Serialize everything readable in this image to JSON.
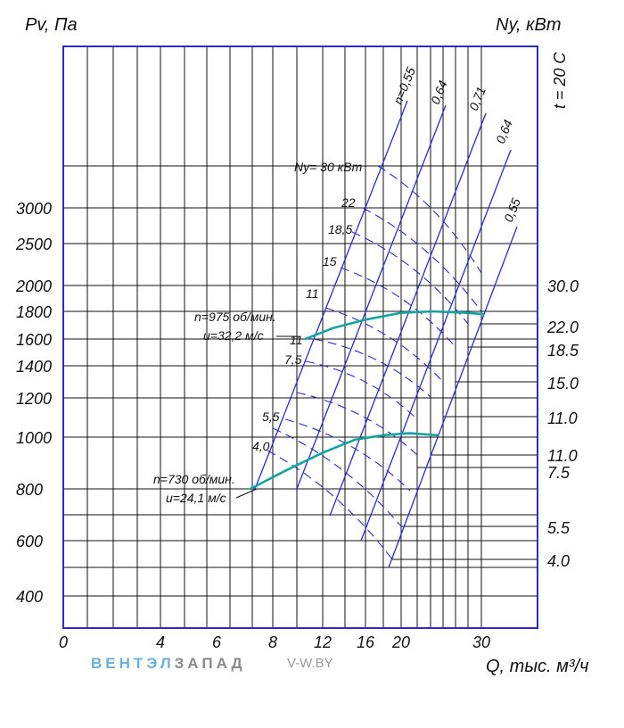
{
  "chart_data": {
    "type": "line",
    "y_left_title": "Pv, Па",
    "y_right_title": "Ny, кВт",
    "x_title": "Q, тыс. м³/ч",
    "temperature_note": "t = 20 C",
    "y_left_ticks": [
      "400",
      "600",
      "800",
      "1000",
      "1200",
      "1400",
      "1600",
      "1800",
      "2000",
      "2500",
      "3000"
    ],
    "y_right_ticks": [
      "30.0",
      "22.0",
      "18.5",
      "15.0",
      "11.0",
      "11.0",
      "7.5",
      "5.5",
      "4.0"
    ],
    "x_ticks": [
      "0",
      "4",
      "6",
      "8",
      "12",
      "16",
      "20",
      "30"
    ],
    "efficiency_labels": [
      "n=0,55",
      "0,64",
      "0,71",
      "0,64",
      "0,55"
    ],
    "power_labels_975": [
      "Ny= 30 кВт",
      "22",
      "18,5",
      "15",
      "11",
      "11",
      "7,5"
    ],
    "power_labels_730": [
      "5,5",
      "4,0"
    ],
    "series": [
      {
        "name": "n=975 об/мин.",
        "speed_label": "n=975 об/мин.",
        "velocity_label": "u=32,2 м/с",
        "points": [
          [
            10.6,
            1600
          ],
          [
            13,
            1680
          ],
          [
            16,
            1740
          ],
          [
            20,
            1790
          ],
          [
            24,
            1800
          ],
          [
            28,
            1790
          ],
          [
            30.2,
            1780
          ]
        ]
      },
      {
        "name": "n=730 об/мин.",
        "speed_label": "n=730 об/мин.",
        "velocity_label": "u=24,1 м/с",
        "points": [
          [
            7.2,
            800
          ],
          [
            9,
            870
          ],
          [
            12,
            940
          ],
          [
            15,
            990
          ],
          [
            18,
            1010
          ],
          [
            21,
            1020
          ],
          [
            24.5,
            1010
          ]
        ]
      }
    ],
    "grid": true
  },
  "brand": {
    "name_part1": "ВЕНТЭЛ",
    "name_part2": "ЗАПАД",
    "url": "V-W.BY"
  },
  "colors": {
    "grid": "#111111",
    "frame": "#2a2ad0",
    "efficiency": "#2a2ad0",
    "curve": "#14a3a3"
  }
}
